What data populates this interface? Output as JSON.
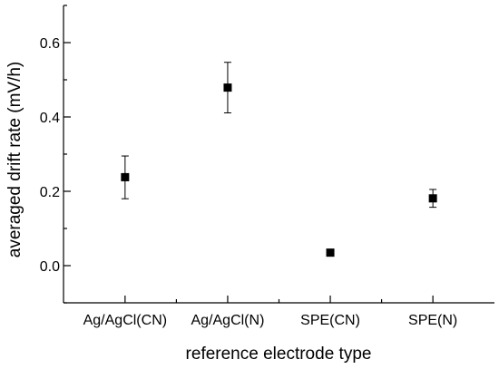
{
  "chart_data": {
    "type": "scatter",
    "title": "",
    "xlabel": "reference electrode type",
    "ylabel": "averaged drift rate (mV/h)",
    "categories": [
      "Ag/AgCl(CN)",
      "Ag/AgCl(N)",
      "SPE(CN)",
      "SPE(N)"
    ],
    "ylim": [
      -0.1,
      0.7
    ],
    "yticks_major": [
      "0.0",
      "0.2",
      "0.4",
      "0.6"
    ],
    "yticks_major_values": [
      0.0,
      0.2,
      0.4,
      0.6
    ],
    "yticks_minor_values": [
      -0.1,
      0.1,
      0.3,
      0.5,
      0.7
    ],
    "grid": false,
    "legend": "none",
    "series": [
      {
        "values": [
          0.238,
          0.479,
          0.035,
          0.181
        ],
        "err_low": [
          0.18,
          0.411,
          0.035,
          0.157
        ],
        "err_high": [
          0.295,
          0.547,
          0.035,
          0.205
        ]
      }
    ]
  }
}
